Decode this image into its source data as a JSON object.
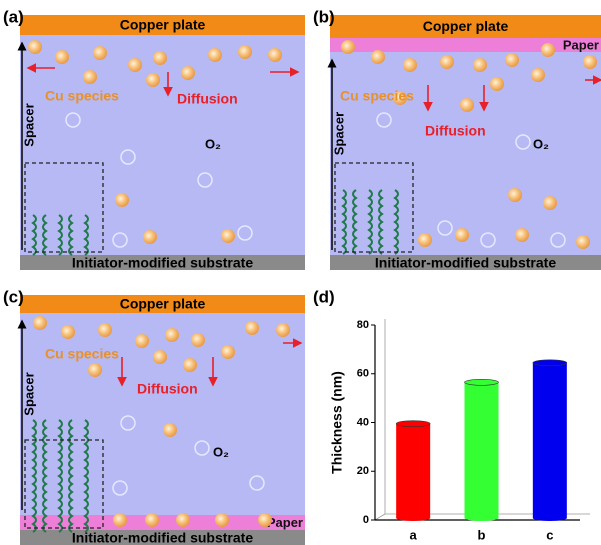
{
  "panels": [
    {
      "label": "(a)",
      "top": "Copper plate",
      "species": "Cu species",
      "diffusion": "Diffusion",
      "oxygen": "O₂",
      "spacer": "Spacer",
      "substrate": "Initiator-modified substrate"
    },
    {
      "label": "(b)",
      "top": "Copper plate",
      "paper": "Paper",
      "species": "Cu species",
      "diffusion": "Diffusion",
      "oxygen": "O₂",
      "spacer": "Spacer",
      "substrate": "Initiator-modified substrate"
    },
    {
      "label": "(c)",
      "top": "Copper plate",
      "paper": "Paper",
      "species": "Cu species",
      "diffusion": "Diffusion",
      "oxygen": "O₂",
      "spacer": "Spacer",
      "substrate": "Initiator-modified substrate"
    }
  ],
  "chart_panel_label": "(d)",
  "chart_data": {
    "type": "bar",
    "y_label": "Thickness (nm)",
    "categories": [
      "a",
      "b",
      "c"
    ],
    "values": [
      39.5,
      56.5,
      64.5
    ],
    "colors": [
      "#ff0000",
      "#33ff33",
      "#0000ee"
    ],
    "ylim": [
      0,
      80
    ],
    "yticks": [
      0,
      20,
      40,
      60,
      80
    ]
  }
}
